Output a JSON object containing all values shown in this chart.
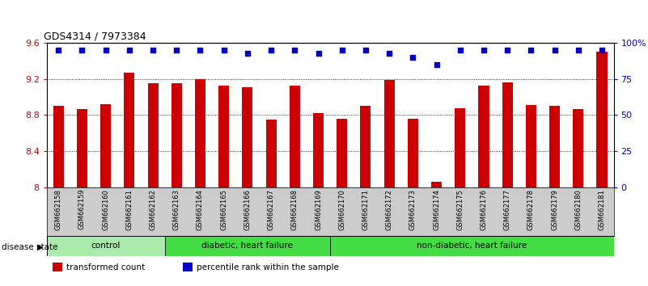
{
  "title": "GDS4314 / 7973384",
  "samples": [
    "GSM662158",
    "GSM662159",
    "GSM662160",
    "GSM662161",
    "GSM662162",
    "GSM662163",
    "GSM662164",
    "GSM662165",
    "GSM662166",
    "GSM662167",
    "GSM662168",
    "GSM662169",
    "GSM662170",
    "GSM662171",
    "GSM662172",
    "GSM662173",
    "GSM662174",
    "GSM662175",
    "GSM662176",
    "GSM662177",
    "GSM662178",
    "GSM662179",
    "GSM662180",
    "GSM662181"
  ],
  "bar_values": [
    8.9,
    8.87,
    8.92,
    9.27,
    9.15,
    9.15,
    9.2,
    9.13,
    9.11,
    8.75,
    9.13,
    8.82,
    8.76,
    8.9,
    9.19,
    8.76,
    8.06,
    8.88,
    9.13,
    9.16,
    8.91,
    8.9,
    8.87,
    9.5
  ],
  "percentile_values": [
    95,
    95,
    95,
    95,
    95,
    95,
    95,
    95,
    93,
    95,
    95,
    93,
    95,
    95,
    93,
    90,
    85,
    95,
    95,
    95,
    95,
    95,
    95,
    95
  ],
  "bar_color": "#cc0000",
  "dot_color": "#0000cc",
  "ylim_left": [
    8.0,
    9.6
  ],
  "ylim_right": [
    0,
    100
  ],
  "yticks_left": [
    8.0,
    8.4,
    8.8,
    9.2,
    9.6
  ],
  "yticks_right": [
    0,
    25,
    50,
    75,
    100
  ],
  "ytick_labels_left": [
    "8",
    "8.4",
    "8.8",
    "9.2",
    "9.6"
  ],
  "ytick_labels_right": [
    "0",
    "25",
    "50",
    "75",
    "100%"
  ],
  "grid_values": [
    8.4,
    8.8,
    9.2
  ],
  "groups": [
    {
      "label": "control",
      "start": 0,
      "end": 5,
      "color": "#aaeaaa"
    },
    {
      "label": "diabetic, heart failure",
      "start": 5,
      "end": 12,
      "color": "#44dd44"
    },
    {
      "label": "non-diabetic, heart failure",
      "start": 12,
      "end": 24,
      "color": "#44dd44"
    }
  ],
  "legend_items": [
    {
      "label": "transformed count",
      "color": "#cc0000"
    },
    {
      "label": "percentile rank within the sample",
      "color": "#0000cc"
    }
  ],
  "disease_state_label": "disease state",
  "background_color": "#ffffff",
  "tick_area_color": "#cccccc"
}
